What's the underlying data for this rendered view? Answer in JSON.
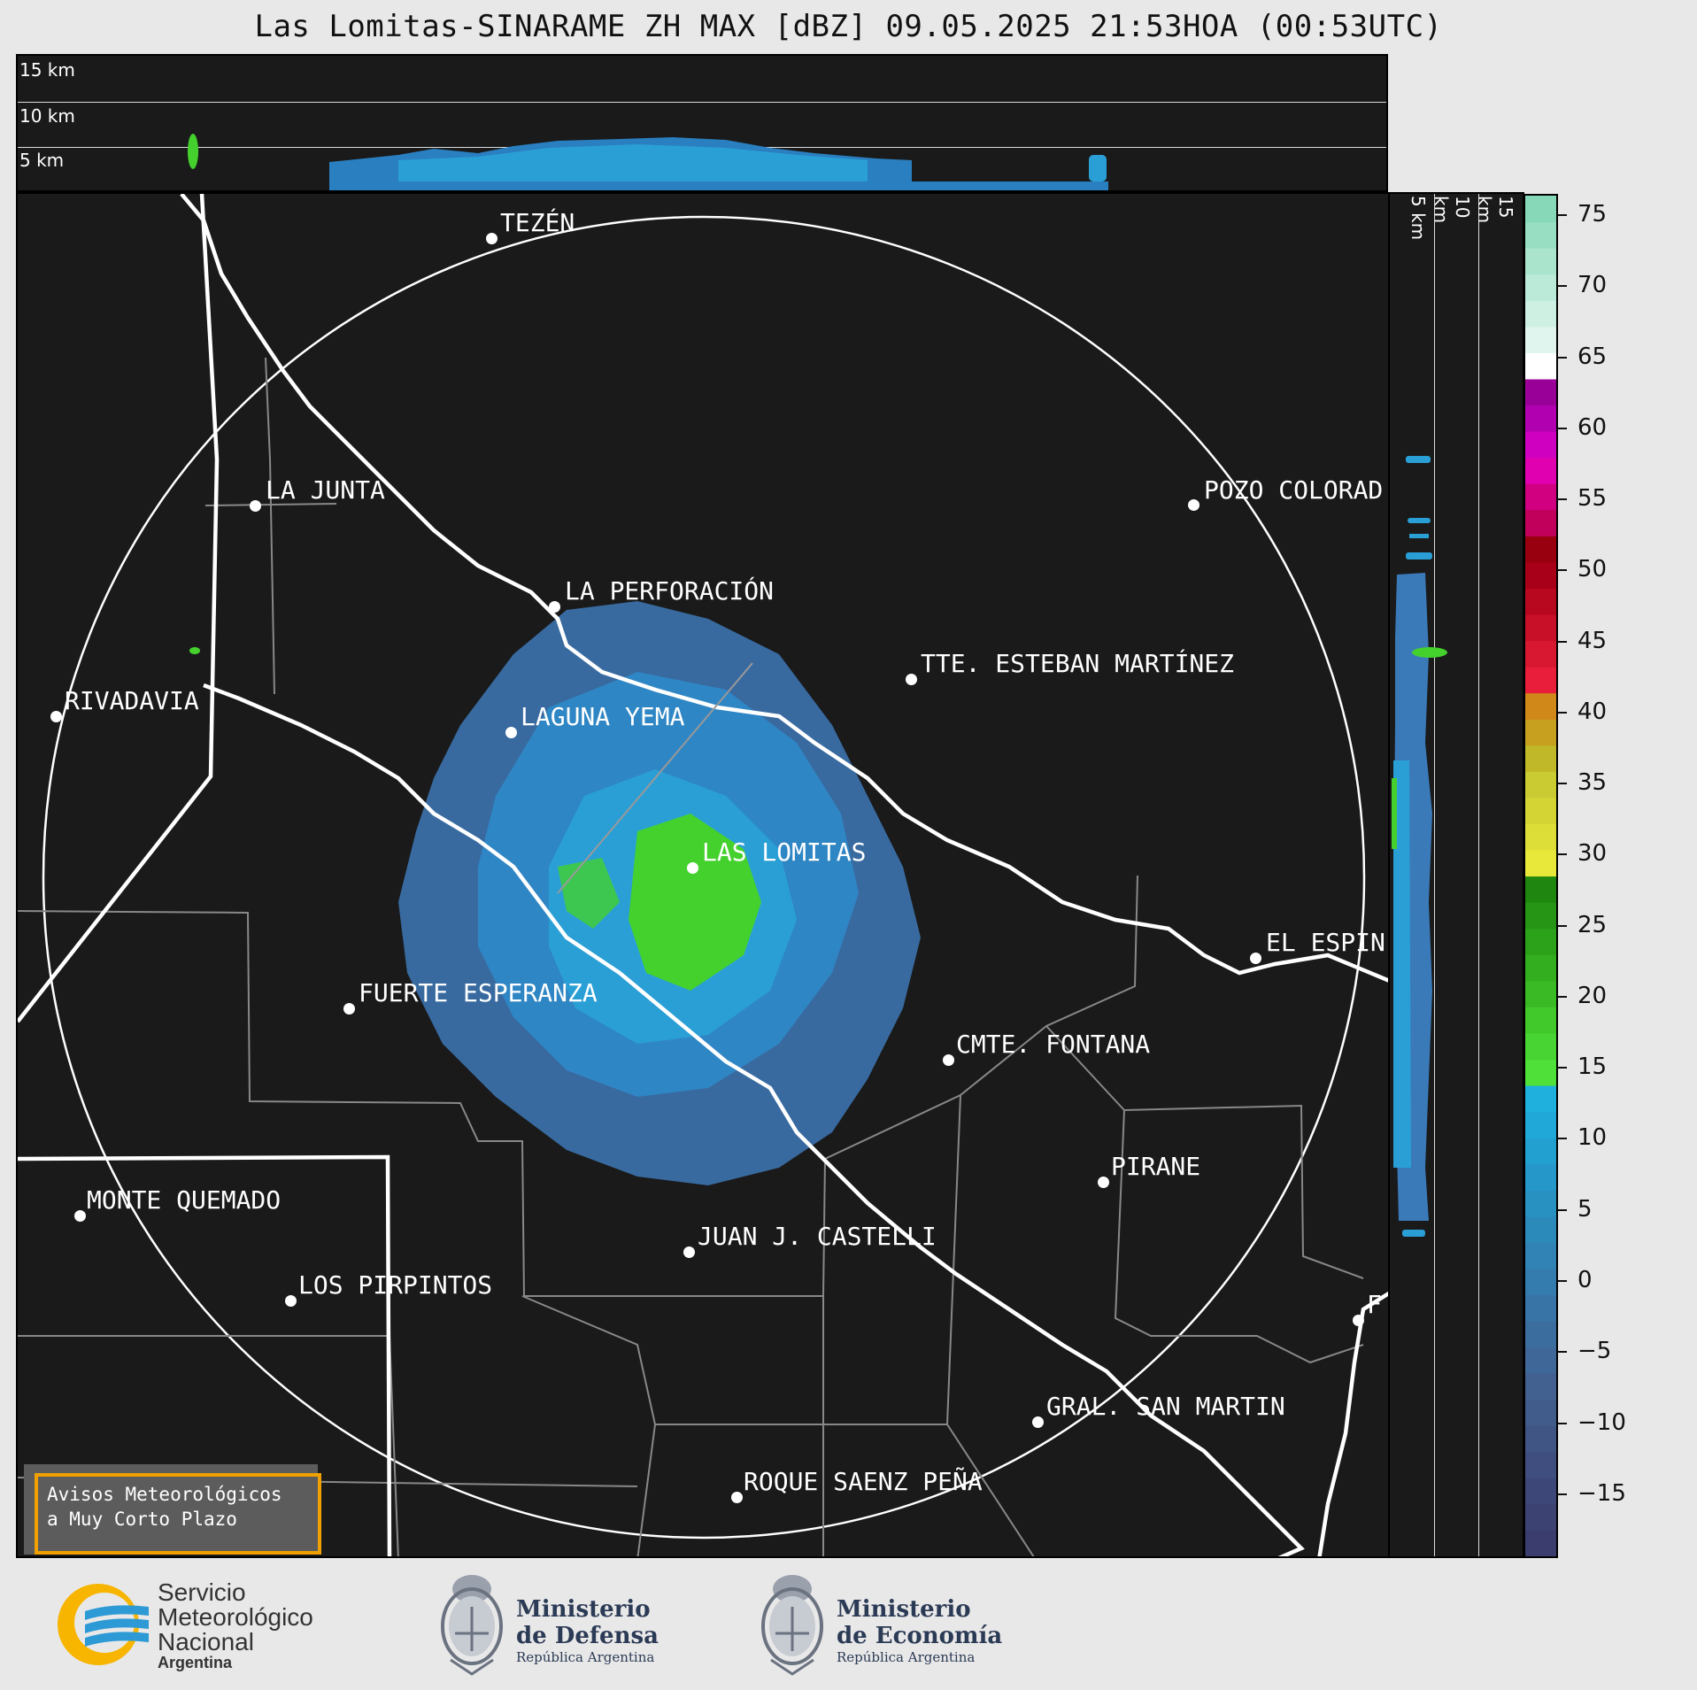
{
  "title": "Las Lomitas-SINARAME ZH MAX [dBZ] 09.05.2025 21:53HOA (00:53UTC)",
  "profile_labels": {
    "km15": "15 km",
    "km10": "10 km",
    "km5": "5 km"
  },
  "cities": [
    {
      "name": "TEZÉN"
    },
    {
      "name": "LA JUNTA"
    },
    {
      "name": "POZO COLORAD"
    },
    {
      "name": "LA PERFORACIÓN"
    },
    {
      "name": "TTE. ESTEBAN MARTÍNEZ"
    },
    {
      "name": "RIVADAVIA"
    },
    {
      "name": "LAGUNA YEMA"
    },
    {
      "name": "LAS LOMITAS"
    },
    {
      "name": "EL ESPIN"
    },
    {
      "name": "FUERTE ESPERANZA"
    },
    {
      "name": "CMTE. FONTANA"
    },
    {
      "name": "PIRANE"
    },
    {
      "name": "MONTE QUEMADO"
    },
    {
      "name": "JUAN J. CASTELLI"
    },
    {
      "name": "LOS PIRPINTOS"
    },
    {
      "name": "F"
    },
    {
      "name": "GRAL. SAN MARTIN"
    },
    {
      "name": "ROQUE SAENZ PEÑA"
    }
  ],
  "colorbar": {
    "unit": "dBZ",
    "range": [
      -19.5,
      76.5
    ],
    "ticks": [
      "75",
      "70",
      "65",
      "60",
      "55",
      "50",
      "45",
      "40",
      "35",
      "30",
      "25",
      "20",
      "15",
      "10",
      "5",
      "0",
      "−5",
      "−10",
      "−15"
    ]
  },
  "alert": {
    "line1": "Avisos Meteorológicos",
    "line2": "a Muy Corto Plazo"
  },
  "logos": {
    "smn": {
      "line1": "Servicio",
      "line2": "Meteorológico",
      "line3": "Nacional",
      "line4": "Argentina"
    },
    "defensa": {
      "line1": "Ministerio",
      "line2": "de Defensa",
      "sub": "República Argentina"
    },
    "economia": {
      "line1": "Ministerio",
      "line2": "de Economía",
      "sub": "República Argentina"
    }
  },
  "colors": {
    "background": "#1a1a1a",
    "light_echo": "#3a7ab8",
    "moderate_echo": "#2a9fd6",
    "strong_echo": "#44d12e",
    "alert_border": "#f0a000"
  }
}
